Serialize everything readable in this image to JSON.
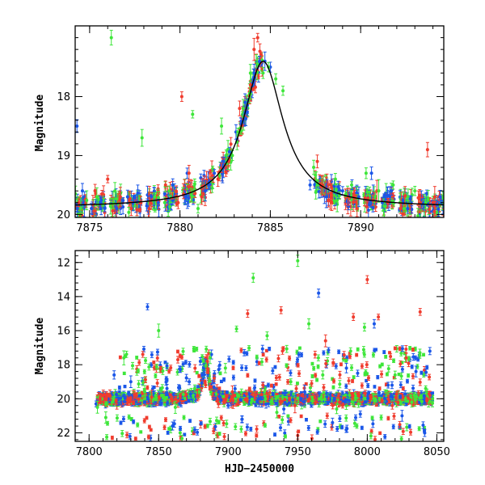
{
  "colors": {
    "blue": "#1a56e8",
    "red": "#f03c2e",
    "green": "#3ee63a",
    "model": "#000000"
  },
  "chart_data": [
    {
      "type": "scatter",
      "title": "",
      "xlabel": "",
      "ylabel": "Magnitude",
      "xlim": [
        7874.2,
        7894.6
      ],
      "ylim": [
        20.05,
        16.8
      ],
      "xticks_major": [
        7875,
        7880,
        7885,
        7890
      ],
      "yticks_major": [
        18,
        19,
        20
      ],
      "x_tick_labels": [
        "7875",
        "7880",
        "7885",
        "7890"
      ],
      "y_tick_labels": [
        "18",
        "19",
        "20"
      ],
      "series": [
        {
          "color": "blue",
          "x": [
            7874.3,
            7874.6,
            7875.1,
            7875.6,
            7876.5,
            7877.1,
            7878.8,
            7879.6,
            7880.4,
            7881.4,
            7881.9,
            7882.4,
            7883.1,
            7883.6,
            7884.1,
            7884.4,
            7884.7,
            7885.0,
            7887.2,
            7888.1,
            7889.0,
            7889.9,
            7890.6,
            7891.2,
            7891.7,
            7892.6,
            7893.5,
            7894.4
          ],
          "y": [
            18.5,
            19.6,
            19.9,
            19.8,
            19.9,
            19.7,
            19.8,
            19.5,
            19.3,
            19.6,
            19.3,
            19.2,
            18.6,
            18.1,
            17.6,
            17.4,
            17.4,
            17.5,
            19.5,
            19.7,
            19.6,
            19.7,
            19.3,
            19.8,
            19.6,
            19.9,
            19.8,
            19.7
          ]
        },
        {
          "color": "red",
          "x": [
            7874.4,
            7875.3,
            7876.0,
            7876.7,
            7877.3,
            7877.8,
            7878.3,
            7879.2,
            7879.9,
            7880.1,
            7880.5,
            7881.2,
            7882.1,
            7882.7,
            7883.3,
            7883.9,
            7884.1,
            7884.3,
            7887.6,
            7887.9,
            7888.4,
            7889.3,
            7889.8,
            7890.9,
            7891.5,
            7892.2,
            7893.3,
            7893.7,
            7894.1
          ],
          "y": [
            19.8,
            19.6,
            19.4,
            19.7,
            19.9,
            19.8,
            19.9,
            19.5,
            19.8,
            18.0,
            19.3,
            19.7,
            19.4,
            19.1,
            18.2,
            17.8,
            17.2,
            17.0,
            19.1,
            19.5,
            19.8,
            19.7,
            19.9,
            19.6,
            19.8,
            19.9,
            19.8,
            18.9,
            19.7
          ]
        },
        {
          "color": "green",
          "x": [
            7874.5,
            7875.4,
            7876.2,
            7876.4,
            7877.9,
            7878.6,
            7879.4,
            7880.7,
            7881.0,
            7882.3,
            7882.9,
            7883.2,
            7883.5,
            7883.9,
            7884.6,
            7884.9,
            7885.3,
            7885.7,
            7887.4,
            7888.6,
            7889.5,
            7890.3,
            7891.0,
            7891.8,
            7892.4,
            7893.0,
            7893.6
          ],
          "y": [
            19.9,
            19.7,
            17.0,
            19.6,
            18.7,
            19.7,
            19.6,
            18.3,
            19.9,
            18.5,
            19.0,
            18.6,
            18.2,
            17.6,
            17.6,
            17.5,
            17.7,
            17.9,
            19.2,
            19.4,
            19.5,
            19.3,
            19.6,
            19.5,
            19.9,
            19.6,
            19.8
          ]
        }
      ],
      "model_curve": {
        "color": "model",
        "peak_x": 7884.6,
        "peak_mag": 17.4,
        "baseline_mag": 19.88
      }
    },
    {
      "type": "scatter",
      "title": "",
      "xlabel": "HJD−2450000",
      "ylabel": "Magnitude",
      "xlim": [
        7790,
        8055
      ],
      "ylim": [
        22.5,
        11.3
      ],
      "xticks_major": [
        7800,
        7850,
        7900,
        7950,
        8000,
        8050
      ],
      "yticks_major": [
        12,
        14,
        16,
        18,
        20,
        22
      ],
      "x_tick_labels": [
        "7800",
        "7850",
        "7900",
        "7950",
        "8000",
        "8050"
      ],
      "y_tick_labels": [
        "12",
        "14",
        "16",
        "18",
        "20",
        "22"
      ],
      "season_range": [
        7806,
        8047
      ],
      "baseline_mag": 20.0,
      "series": [
        {
          "color": "blue",
          "x": [
            7805,
            7818,
            7830,
            7842,
            7856,
            7860,
            7872,
            7880,
            7888,
            7900,
            7910,
            7925,
            7940,
            7955,
            7965,
            7975,
            7985,
            7995,
            8005,
            8015,
            8025,
            8035,
            8045
          ],
          "y": [
            20.3,
            18.6,
            19.0,
            14.6,
            19.4,
            21.6,
            19.0,
            17.8,
            17.4,
            20.4,
            21.2,
            19.2,
            20.6,
            19.6,
            13.8,
            21.4,
            18.2,
            20.9,
            15.6,
            19.2,
            21.0,
            18.4,
            17.2
          ]
        },
        {
          "color": "red",
          "x": [
            7808,
            7815,
            7828,
            7845,
            7860,
            7878,
            7885,
            7893,
            7903,
            7914,
            7925,
            7938,
            7948,
            7960,
            7970,
            7980,
            7990,
            8000,
            8008,
            8018,
            8028,
            8038,
            8045
          ],
          "y": [
            20.0,
            19.8,
            20.2,
            19.9,
            20.1,
            19.8,
            17.8,
            20.3,
            19.6,
            15.0,
            19.2,
            14.8,
            20.4,
            19.1,
            16.6,
            20.2,
            15.2,
            13.0,
            15.2,
            20.4,
            17.6,
            14.9,
            19.8
          ]
        },
        {
          "color": "green",
          "x": [
            7806,
            7812,
            7825,
            7840,
            7850,
            7862,
            7876,
            7887,
            7898,
            7906,
            7918,
            7928,
            7935,
            7945,
            7950,
            7958,
            7968,
            7978,
            7988,
            7998,
            8010,
            8020,
            8032,
            8042
          ],
          "y": [
            20.5,
            21.1,
            17.6,
            19.6,
            16.0,
            20.5,
            19.4,
            17.6,
            18.2,
            15.9,
            12.9,
            16.3,
            20.8,
            19.0,
            11.9,
            15.6,
            18.6,
            20.6,
            17.2,
            15.8,
            21.1,
            18.6,
            20.2,
            19.4
          ]
        }
      ]
    }
  ]
}
